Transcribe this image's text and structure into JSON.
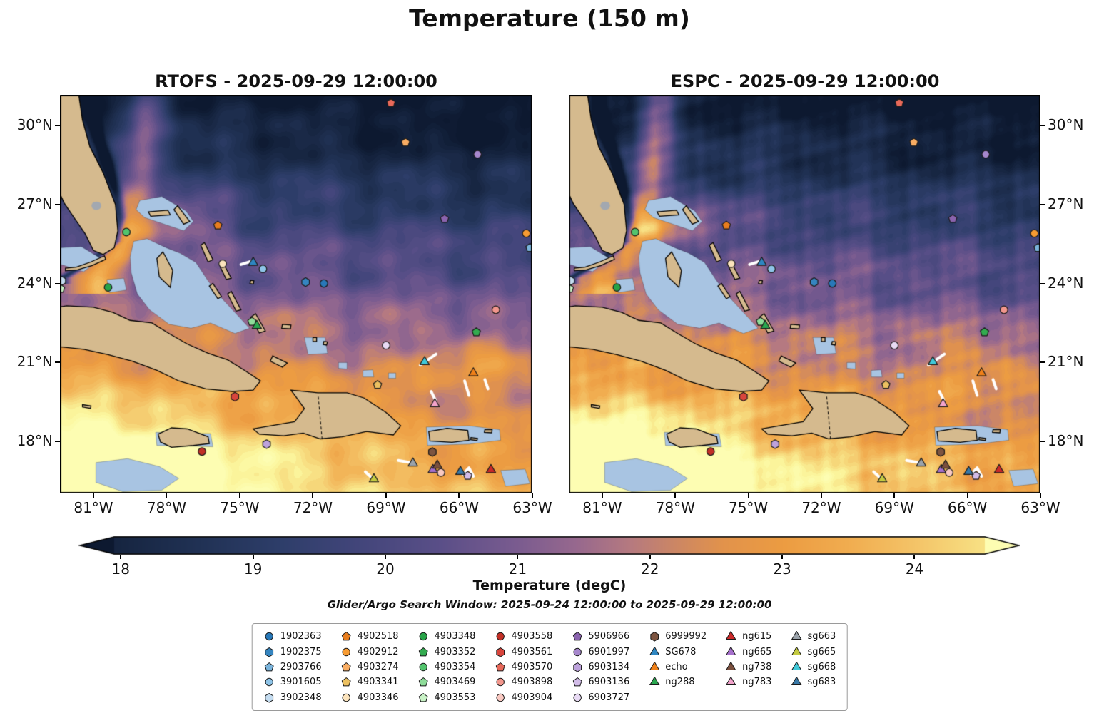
{
  "figure": {
    "title": "Temperature (150 m)"
  },
  "panels": [
    {
      "id": "rtofs",
      "title": "RTOFS - 2025-09-29 12:00:00"
    },
    {
      "id": "espc",
      "title": "ESPC - 2025-09-29 12:00:00"
    }
  ],
  "axes": {
    "lat_labels": [
      "30°N",
      "27°N",
      "24°N",
      "21°N",
      "18°N"
    ],
    "lat_values": [
      30,
      27,
      24,
      21,
      18
    ],
    "lon_labels": [
      "81°W",
      "78°W",
      "75°W",
      "72°W",
      "69°W",
      "66°W",
      "63°W"
    ],
    "lon_values": [
      81,
      78,
      75,
      72,
      69,
      66,
      63
    ]
  },
  "colorbar": {
    "ticks": [
      "18",
      "19",
      "20",
      "21",
      "22",
      "23",
      "24"
    ],
    "tick_values": [
      18,
      19,
      20,
      21,
      22,
      23,
      24
    ],
    "label": "Temperature (degC)",
    "subtitle": "Glider/Argo Search Window: 2025-09-24 12:00:00 to 2025-09-29 12:00:00"
  },
  "legend": {
    "columns": [
      [
        {
          "label": "1902363",
          "shape": "circle",
          "color": "#2878b8"
        },
        {
          "label": "1902375",
          "shape": "hexagon",
          "color": "#3585c0"
        },
        {
          "label": "2903766",
          "shape": "pentagon",
          "color": "#7ab4dc"
        },
        {
          "label": "3901605",
          "shape": "circle",
          "color": "#8ec4e8"
        },
        {
          "label": "3902348",
          "shape": "hexagon",
          "color": "#c4dcf0"
        }
      ],
      [
        {
          "label": "4902518",
          "shape": "pentagon",
          "color": "#e87d1e"
        },
        {
          "label": "4902912",
          "shape": "circle",
          "color": "#f79b32"
        },
        {
          "label": "4903274",
          "shape": "pentagon",
          "color": "#f9ad63"
        },
        {
          "label": "4903341",
          "shape": "pentagon",
          "color": "#ecc060"
        },
        {
          "label": "4903346",
          "shape": "circle",
          "color": "#fbe3bc"
        }
      ],
      [
        {
          "label": "4903348",
          "shape": "circle",
          "color": "#28a348"
        },
        {
          "label": "4903352",
          "shape": "pentagon",
          "color": "#33ab4f"
        },
        {
          "label": "4903354",
          "shape": "circle",
          "color": "#52c46d"
        },
        {
          "label": "4903469",
          "shape": "pentagon",
          "color": "#8edc99"
        },
        {
          "label": "4903553",
          "shape": "pentagon",
          "color": "#c9f2c6"
        }
      ],
      [
        {
          "label": "4903558",
          "shape": "circle",
          "color": "#c22f26"
        },
        {
          "label": "4903561",
          "shape": "hexagon",
          "color": "#d9453c"
        },
        {
          "label": "4903570",
          "shape": "pentagon",
          "color": "#e8695a"
        },
        {
          "label": "4903898",
          "shape": "circle",
          "color": "#f2968c"
        },
        {
          "label": "4903904",
          "shape": "circle",
          "color": "#f9c9c2"
        }
      ],
      [
        {
          "label": "5906966",
          "shape": "pentagon",
          "color": "#8a63ae"
        },
        {
          "label": "6901997",
          "shape": "circle",
          "color": "#a687cc"
        },
        {
          "label": "6903134",
          "shape": "hexagon",
          "color": "#bda2dc"
        },
        {
          "label": "6903136",
          "shape": "pentagon",
          "color": "#d2bce8"
        },
        {
          "label": "6903727",
          "shape": "circle",
          "color": "#e8daf4"
        }
      ],
      [
        {
          "label": "6999992",
          "shape": "hexagon",
          "color": "#7d5440"
        },
        {
          "label": "SG678",
          "shape": "triangle",
          "color": "#2e86c1"
        },
        {
          "label": "echo",
          "shape": "triangle",
          "color": "#f08018"
        },
        {
          "label": "ng288",
          "shape": "triangle",
          "color": "#28a74e"
        }
      ],
      [
        {
          "label": "ng615",
          "shape": "triangle",
          "color": "#cc2929"
        },
        {
          "label": "ng665",
          "shape": "triangle",
          "color": "#a670cc"
        },
        {
          "label": "ng738",
          "shape": "triangle",
          "color": "#7a4f3d"
        },
        {
          "label": "ng783",
          "shape": "triangle",
          "color": "#f2a3cb"
        }
      ],
      [
        {
          "label": "sg663",
          "shape": "triangle",
          "color": "#9aa2aa"
        },
        {
          "label": "sg665",
          "shape": "triangle",
          "color": "#c3ca40"
        },
        {
          "label": "sg668",
          "shape": "triangle",
          "color": "#3fc8d8"
        },
        {
          "label": "sg683",
          "shape": "triangle",
          "color": "#3879a8"
        }
      ]
    ]
  },
  "chart_data": {
    "type": "heatmap",
    "variable": "Temperature",
    "depth_m": 150,
    "units": "degC",
    "models": [
      "RTOFS",
      "ESPC"
    ],
    "valid_time": "2025-09-29 12:00:00",
    "search_window": {
      "start": "2025-09-24 12:00:00",
      "end": "2025-09-29 12:00:00"
    },
    "extent": {
      "lon_west_deg_w": 82.4,
      "lon_east_deg_w": 63.0,
      "lat_south_deg_n": 16.0,
      "lat_north_deg_n": 31.2
    },
    "colorbar_range": [
      18,
      24
    ],
    "colormap_stops": [
      [
        17.4,
        "#0d1930"
      ],
      [
        18.0,
        "#172642"
      ],
      [
        18.6,
        "#213255"
      ],
      [
        19.2,
        "#2e3e6a"
      ],
      [
        19.8,
        "#43467b"
      ],
      [
        20.4,
        "#5a4f88"
      ],
      [
        21.0,
        "#7b5c90"
      ],
      [
        21.45,
        "#98698e"
      ],
      [
        21.85,
        "#b67a80"
      ],
      [
        22.2,
        "#cd8764"
      ],
      [
        22.55,
        "#e2934c"
      ],
      [
        23.0,
        "#ec9c42"
      ],
      [
        23.5,
        "#f1ad50"
      ],
      [
        24.0,
        "#f4c468"
      ],
      [
        24.45,
        "#f7dd80"
      ],
      [
        24.85,
        "#fbf59c"
      ],
      [
        25.3,
        "#fdfdb2"
      ]
    ],
    "platforms": [
      {
        "id": "1902363",
        "shape": "circle",
        "color": "#2878b8",
        "lon_w": 71.55,
        "lat_n": 24.0
      },
      {
        "id": "1902375",
        "shape": "hexagon",
        "color": "#3585c0",
        "lon_w": 72.3,
        "lat_n": 24.05
      },
      {
        "id": "2903766",
        "shape": "pentagon",
        "color": "#7ab4dc",
        "lon_w": 63.1,
        "lat_n": 25.35
      },
      {
        "id": "3901605",
        "shape": "circle",
        "color": "#8ec4e8",
        "lon_w": 74.05,
        "lat_n": 24.55
      },
      {
        "id": "3902348",
        "shape": "hexagon",
        "color": "#c4dcf0",
        "lon_w": 82.3,
        "lat_n": 24.1
      },
      {
        "id": "4902518",
        "shape": "pentagon",
        "color": "#e87d1e",
        "lon_w": 75.9,
        "lat_n": 26.2
      },
      {
        "id": "4902912",
        "shape": "circle",
        "color": "#f79b32",
        "lon_w": 63.25,
        "lat_n": 25.9
      },
      {
        "id": "4903274",
        "shape": "pentagon",
        "color": "#f9ad63",
        "lon_w": 68.2,
        "lat_n": 29.35
      },
      {
        "id": "4903341",
        "shape": "pentagon",
        "color": "#ecc060",
        "lon_w": 69.35,
        "lat_n": 20.15
      },
      {
        "id": "4903346",
        "shape": "circle",
        "color": "#fbe3bc",
        "lon_w": 75.7,
        "lat_n": 24.75
      },
      {
        "id": "4903348",
        "shape": "circle",
        "color": "#28a348",
        "lon_w": 80.4,
        "lat_n": 23.85
      },
      {
        "id": "4903352",
        "shape": "pentagon",
        "color": "#33ab4f",
        "lon_w": 65.3,
        "lat_n": 22.15
      },
      {
        "id": "4903354",
        "shape": "circle",
        "color": "#52c46d",
        "lon_w": 79.65,
        "lat_n": 25.95
      },
      {
        "id": "4903469",
        "shape": "pentagon",
        "color": "#8edc99",
        "lon_w": 74.5,
        "lat_n": 22.55
      },
      {
        "id": "4903553",
        "shape": "pentagon",
        "color": "#c9f2c6",
        "lon_w": 82.35,
        "lat_n": 23.8
      },
      {
        "id": "4903558",
        "shape": "circle",
        "color": "#c22f26",
        "lon_w": 76.55,
        "lat_n": 17.62
      },
      {
        "id": "4903561",
        "shape": "hexagon",
        "color": "#d9453c",
        "lon_w": 75.2,
        "lat_n": 19.7
      },
      {
        "id": "4903570",
        "shape": "pentagon",
        "color": "#e8695a",
        "lon_w": 68.8,
        "lat_n": 30.85
      },
      {
        "id": "4903898",
        "shape": "circle",
        "color": "#f2968c",
        "lon_w": 64.5,
        "lat_n": 23.0
      },
      {
        "id": "4903904",
        "shape": "circle",
        "color": "#f9c9c2",
        "lon_w": 66.75,
        "lat_n": 16.82
      },
      {
        "id": "5906966",
        "shape": "pentagon",
        "color": "#8a63ae",
        "lon_w": 66.6,
        "lat_n": 26.45
      },
      {
        "id": "6901997",
        "shape": "circle",
        "color": "#a687cc",
        "lon_w": 65.25,
        "lat_n": 28.9
      },
      {
        "id": "6903134",
        "shape": "hexagon",
        "color": "#bda2dc",
        "lon_w": 73.9,
        "lat_n": 17.9
      },
      {
        "id": "6903136",
        "shape": "pentagon",
        "color": "#d2bce8",
        "lon_w": 65.65,
        "lat_n": 16.7
      },
      {
        "id": "6903727",
        "shape": "circle",
        "color": "#e8daf4",
        "lon_w": 69.0,
        "lat_n": 21.65
      },
      {
        "id": "6999992",
        "shape": "hexagon",
        "color": "#7d5440",
        "lon_w": 67.1,
        "lat_n": 17.6
      },
      {
        "id": "SG678",
        "shape": "triangle",
        "color": "#2e86c1",
        "lon_w": 74.45,
        "lat_n": 24.82
      },
      {
        "id": "echo",
        "shape": "triangle",
        "color": "#f08018",
        "lon_w": 65.42,
        "lat_n": 20.62
      },
      {
        "id": "ng288",
        "shape": "triangle",
        "color": "#28a74e",
        "lon_w": 74.3,
        "lat_n": 22.42
      },
      {
        "id": "ng615",
        "shape": "triangle",
        "color": "#cc2929",
        "lon_w": 64.7,
        "lat_n": 16.95
      },
      {
        "id": "ng665",
        "shape": "triangle",
        "color": "#a670cc",
        "lon_w": 67.08,
        "lat_n": 16.95
      },
      {
        "id": "ng738",
        "shape": "triangle",
        "color": "#7a4f3d",
        "lon_w": 66.9,
        "lat_n": 17.12
      },
      {
        "id": "ng783",
        "shape": "triangle",
        "color": "#f2a3cb",
        "lon_w": 67.0,
        "lat_n": 19.45
      },
      {
        "id": "sg663",
        "shape": "triangle",
        "color": "#9aa2aa",
        "lon_w": 67.9,
        "lat_n": 17.2
      },
      {
        "id": "sg665",
        "shape": "triangle",
        "color": "#c3ca40",
        "lon_w": 69.5,
        "lat_n": 16.6
      },
      {
        "id": "sg668",
        "shape": "triangle",
        "color": "#3fc8d8",
        "lon_w": 67.42,
        "lat_n": 21.05
      },
      {
        "id": "sg683",
        "shape": "triangle",
        "color": "#3879a8",
        "lon_w": 65.95,
        "lat_n": 16.88
      }
    ],
    "trajectories": [
      [
        [
          74.95,
          24.72
        ],
        [
          74.5,
          24.85
        ]
      ],
      [
        [
          67.6,
          20.9
        ],
        [
          66.95,
          21.32
        ]
      ],
      [
        [
          65.78,
          20.3
        ],
        [
          65.6,
          19.75
        ]
      ],
      [
        [
          67.15,
          19.9
        ],
        [
          66.98,
          19.58
        ]
      ],
      [
        [
          68.5,
          17.28
        ],
        [
          68.0,
          17.2
        ]
      ],
      [
        [
          69.85,
          16.85
        ],
        [
          69.58,
          16.62
        ]
      ],
      [
        [
          65.85,
          16.75
        ],
        [
          65.6,
          17.0
        ],
        [
          65.42,
          16.68
        ]
      ],
      [
        [
          64.95,
          20.35
        ],
        [
          64.82,
          20.0
        ]
      ]
    ]
  }
}
